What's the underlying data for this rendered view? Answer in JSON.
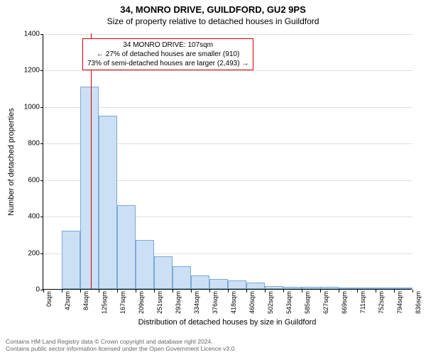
{
  "title": "34, MONRO DRIVE, GUILDFORD, GU2 9PS",
  "subtitle": "Size of property relative to detached houses in Guildford",
  "ylabel": "Number of detached properties",
  "xlabel": "Distribution of detached houses by size in Guildford",
  "chart": {
    "type": "histogram",
    "ylim": [
      0,
      1400
    ],
    "ytick_step": 200,
    "yticks": [
      0,
      200,
      400,
      600,
      800,
      1000,
      1200,
      1400
    ],
    "xticks": [
      "0sqm",
      "42sqm",
      "84sqm",
      "125sqm",
      "167sqm",
      "209sqm",
      "251sqm",
      "293sqm",
      "334sqm",
      "376sqm",
      "418sqm",
      "460sqm",
      "502sqm",
      "543sqm",
      "585sqm",
      "627sqm",
      "669sqm",
      "711sqm",
      "752sqm",
      "794sqm",
      "836sqm"
    ],
    "bar_color": "#cce0f5",
    "bar_border": "#7aa8d8",
    "grid_color": "#e0e0e0",
    "background": "#ffffff",
    "marker_color": "#d00000",
    "values": [
      0,
      320,
      1110,
      950,
      460,
      270,
      180,
      125,
      75,
      55,
      45,
      35,
      15,
      10,
      10,
      10,
      5,
      5,
      5,
      5
    ],
    "marker_x_position": 107,
    "x_min": 0,
    "x_max": 836,
    "bar_width_ratio": 1.0
  },
  "annotation": {
    "line1": "34 MONRO DRIVE: 107sqm",
    "line2": "← 27% of detached houses are smaller (910)",
    "line3": "73% of semi-detached houses are larger (2,493) →"
  },
  "footer": {
    "line1": "Contains HM Land Registry data © Crown copyright and database right 2024.",
    "line2": "Contains public sector information licensed under the Open Government Licence v3.0."
  }
}
